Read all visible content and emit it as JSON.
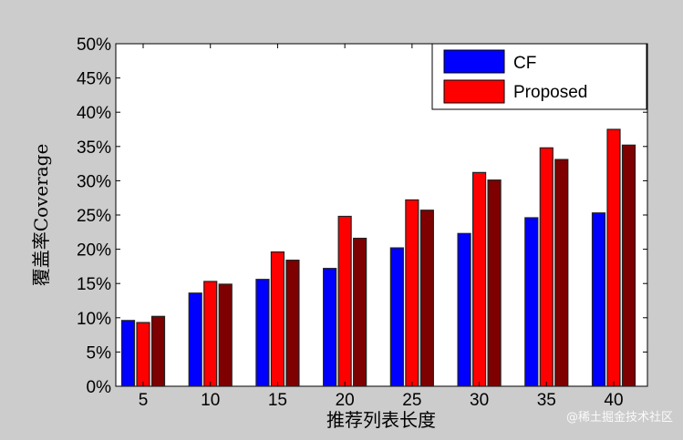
{
  "chart_data": {
    "type": "bar",
    "title": "",
    "xlabel": "推荐列表长度",
    "ylabel": "覆盖率Coverage",
    "categories": [
      "5",
      "10",
      "15",
      "20",
      "25",
      "30",
      "35",
      "40"
    ],
    "ylim": [
      0,
      50
    ],
    "yticks": [
      "0%",
      "5%",
      "10%",
      "15%",
      "20%",
      "25%",
      "30%",
      "35%",
      "40%",
      "45%",
      "50%"
    ],
    "grid": false,
    "legend_position": "top-right",
    "series": [
      {
        "name": "CF",
        "color": "#0000ff",
        "values": [
          9.6,
          13.6,
          15.6,
          17.2,
          20.2,
          22.3,
          24.6,
          25.3
        ]
      },
      {
        "name": "Proposed",
        "color": "#ff0000",
        "values": [
          9.3,
          15.3,
          19.6,
          24.8,
          27.2,
          31.2,
          34.8,
          37.5
        ]
      },
      {
        "color": "#7f0000",
        "values": [
          10.2,
          14.9,
          18.4,
          21.6,
          25.7,
          30.1,
          33.1,
          35.2
        ]
      }
    ]
  },
  "watermark": "@稀土掘金技术社区"
}
